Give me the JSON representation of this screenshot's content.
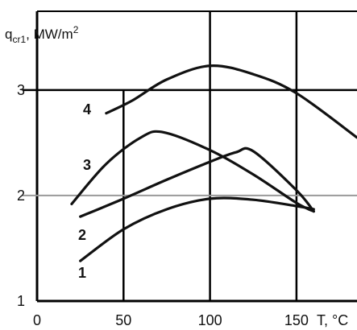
{
  "chart_data": {
    "type": "line",
    "title": "",
    "ylabel": {
      "main": "q",
      "subscript": "cr1",
      "unit": ", MW/m",
      "superscript": "2"
    },
    "xlabel": "T, °C",
    "x_ticks": [
      0,
      50,
      100,
      150
    ],
    "y_ticks": [
      1,
      2,
      3
    ],
    "xlim": [
      0,
      185
    ],
    "ylim": [
      1,
      3.35
    ],
    "grid": true,
    "colors": {
      "curve": "#111111",
      "grid": "#000000",
      "highlight_line": "#999999"
    },
    "series": [
      {
        "name": "1",
        "x": [
          25,
          50,
          75,
          100,
          125,
          150,
          160
        ],
        "y": [
          1.38,
          1.68,
          1.87,
          1.97,
          1.96,
          1.9,
          1.87
        ]
      },
      {
        "name": "2",
        "x": [
          25,
          50,
          75,
          100,
          115,
          125,
          150,
          160
        ],
        "y": [
          1.8,
          1.97,
          2.15,
          2.32,
          2.41,
          2.42,
          2.05,
          1.85
        ]
      },
      {
        "name": "3",
        "x": [
          20,
          40,
          60,
          73,
          100,
          125,
          150,
          160
        ],
        "y": [
          1.92,
          2.3,
          2.55,
          2.6,
          2.43,
          2.2,
          1.93,
          1.85
        ]
      },
      {
        "name": "4",
        "x": [
          40,
          55,
          75,
          100,
          125,
          150,
          185
        ],
        "y": [
          2.78,
          2.9,
          3.1,
          3.23,
          3.15,
          2.97,
          2.55
        ]
      }
    ],
    "series_labels": [
      "1",
      "2",
      "3",
      "4"
    ]
  }
}
